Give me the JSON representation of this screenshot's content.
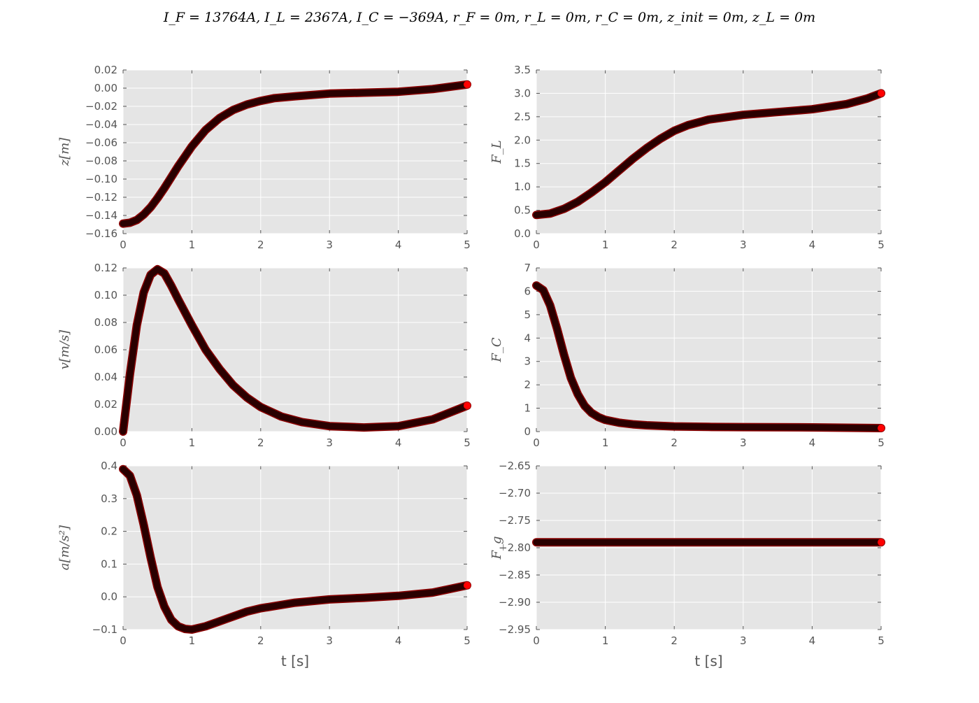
{
  "figure": {
    "suptitle": "I_F = 13764A, I_L = 2367A, I_C = −369A, r_F = 0m, r_L = 0m, r_C = 0m, z_init = 0m, z_L = 0m"
  },
  "colors": {
    "background": "#e5e5e5",
    "grid": "#ffffff",
    "line": "#2a0000",
    "marker_edge": "#8b0000",
    "endpoint": "#ff0000",
    "tick_text": "#555555"
  },
  "chart_data": [
    {
      "type": "line",
      "ylabel": "z[m]",
      "xlabel": "",
      "xlim": [
        0,
        5
      ],
      "ylim": [
        -0.16,
        0.02
      ],
      "xticks": [
        "0",
        "1",
        "2",
        "3",
        "4",
        "5"
      ],
      "yticks": [
        "0.02",
        "0.00",
        "−0.02",
        "−0.04",
        "−0.06",
        "−0.08",
        "−0.10",
        "−0.12",
        "−0.14",
        "−0.16"
      ],
      "ytick_values": [
        0.02,
        0.0,
        -0.02,
        -0.04,
        -0.06,
        -0.08,
        -0.1,
        -0.12,
        -0.14,
        -0.16
      ],
      "grid": true,
      "x": [
        0,
        0.1,
        0.2,
        0.3,
        0.4,
        0.5,
        0.6,
        0.7,
        0.8,
        0.9,
        1.0,
        1.2,
        1.4,
        1.6,
        1.8,
        2.0,
        2.2,
        2.5,
        3.0,
        3.5,
        4.0,
        4.5,
        5.0
      ],
      "y": [
        -0.149,
        -0.148,
        -0.145,
        -0.139,
        -0.131,
        -0.121,
        -0.11,
        -0.098,
        -0.086,
        -0.075,
        -0.064,
        -0.046,
        -0.033,
        -0.024,
        -0.018,
        -0.014,
        -0.011,
        -0.009,
        -0.006,
        -0.005,
        -0.004,
        -0.001,
        0.004
      ]
    },
    {
      "type": "line",
      "ylabel": "F_L",
      "xlabel": "",
      "xlim": [
        0,
        5
      ],
      "ylim": [
        0,
        3.5
      ],
      "xticks": [
        "0",
        "1",
        "2",
        "3",
        "4",
        "5"
      ],
      "yticks": [
        "3.5",
        "3.0",
        "2.5",
        "2.0",
        "1.5",
        "1.0",
        "0.5",
        "0.0"
      ],
      "ytick_values": [
        3.5,
        3.0,
        2.5,
        2.0,
        1.5,
        1.0,
        0.5,
        0.0
      ],
      "grid": true,
      "x": [
        0,
        0.2,
        0.4,
        0.6,
        0.8,
        1.0,
        1.2,
        1.4,
        1.6,
        1.8,
        2.0,
        2.2,
        2.5,
        3.0,
        3.5,
        4.0,
        4.5,
        4.8,
        5.0
      ],
      "y": [
        0.4,
        0.43,
        0.53,
        0.68,
        0.88,
        1.1,
        1.35,
        1.6,
        1.83,
        2.03,
        2.2,
        2.32,
        2.44,
        2.54,
        2.6,
        2.66,
        2.77,
        2.89,
        3.0
      ]
    },
    {
      "type": "line",
      "ylabel": "v[m/s]",
      "xlabel": "",
      "xlim": [
        0,
        5
      ],
      "ylim": [
        0,
        0.12
      ],
      "xticks": [
        "0",
        "1",
        "2",
        "3",
        "4",
        "5"
      ],
      "yticks": [
        "0.12",
        "0.10",
        "0.08",
        "0.06",
        "0.04",
        "0.02",
        "0.00"
      ],
      "ytick_values": [
        0.12,
        0.1,
        0.08,
        0.06,
        0.04,
        0.02,
        0.0
      ],
      "grid": true,
      "x": [
        0,
        0.1,
        0.2,
        0.3,
        0.4,
        0.5,
        0.6,
        0.7,
        0.8,
        1.0,
        1.2,
        1.4,
        1.6,
        1.8,
        2.0,
        2.3,
        2.6,
        3.0,
        3.5,
        4.0,
        4.5,
        5.0
      ],
      "y": [
        0.0,
        0.042,
        0.078,
        0.102,
        0.115,
        0.119,
        0.116,
        0.107,
        0.097,
        0.078,
        0.06,
        0.046,
        0.034,
        0.025,
        0.018,
        0.011,
        0.007,
        0.004,
        0.003,
        0.004,
        0.009,
        0.019
      ]
    },
    {
      "type": "line",
      "ylabel": "F_C",
      "xlabel": "",
      "xlim": [
        0,
        5
      ],
      "ylim": [
        0,
        7
      ],
      "xticks": [
        "0",
        "1",
        "2",
        "3",
        "4",
        "5"
      ],
      "yticks": [
        "7",
        "6",
        "5",
        "4",
        "3",
        "2",
        "1",
        "0"
      ],
      "ytick_values": [
        7,
        6,
        5,
        4,
        3,
        2,
        1,
        0
      ],
      "grid": true,
      "x": [
        0,
        0.1,
        0.2,
        0.3,
        0.4,
        0.5,
        0.6,
        0.7,
        0.8,
        0.9,
        1.0,
        1.2,
        1.4,
        1.6,
        2.0,
        2.5,
        3.0,
        4.0,
        5.0
      ],
      "y": [
        6.25,
        6.05,
        5.4,
        4.4,
        3.3,
        2.3,
        1.6,
        1.1,
        0.8,
        0.62,
        0.5,
        0.38,
        0.31,
        0.27,
        0.22,
        0.2,
        0.19,
        0.18,
        0.15
      ]
    },
    {
      "type": "line",
      "ylabel": "a[m/s²]",
      "xlabel": "t [s]",
      "xlim": [
        0,
        5
      ],
      "ylim": [
        -0.1,
        0.4
      ],
      "xticks": [
        "0",
        "1",
        "2",
        "3",
        "4",
        "5"
      ],
      "yticks": [
        "0.4",
        "0.3",
        "0.2",
        "0.1",
        "0.0",
        "−0.1"
      ],
      "ytick_values": [
        0.4,
        0.3,
        0.2,
        0.1,
        0.0,
        -0.1
      ],
      "grid": true,
      "x": [
        0,
        0.1,
        0.2,
        0.3,
        0.4,
        0.5,
        0.6,
        0.7,
        0.8,
        0.9,
        1.0,
        1.2,
        1.4,
        1.6,
        1.8,
        2.0,
        2.5,
        3.0,
        3.5,
        4.0,
        4.5,
        5.0
      ],
      "y": [
        0.39,
        0.37,
        0.31,
        0.22,
        0.12,
        0.03,
        -0.03,
        -0.07,
        -0.09,
        -0.098,
        -0.1,
        -0.09,
        -0.075,
        -0.06,
        -0.045,
        -0.035,
        -0.018,
        -0.008,
        -0.003,
        0.003,
        0.013,
        0.035
      ]
    },
    {
      "type": "line",
      "ylabel": "F_g",
      "xlabel": "t [s]",
      "xlim": [
        0,
        5
      ],
      "ylim": [
        -2.95,
        -2.65
      ],
      "xticks": [
        "0",
        "1",
        "2",
        "3",
        "4",
        "5"
      ],
      "yticks": [
        "−2.65",
        "−2.70",
        "−2.75",
        "−2.80",
        "−2.85",
        "−2.90",
        "−2.95"
      ],
      "ytick_values": [
        -2.65,
        -2.7,
        -2.75,
        -2.8,
        -2.85,
        -2.9,
        -2.95
      ],
      "grid": true,
      "x": [
        0,
        5
      ],
      "y": [
        -2.79,
        -2.79
      ]
    }
  ]
}
